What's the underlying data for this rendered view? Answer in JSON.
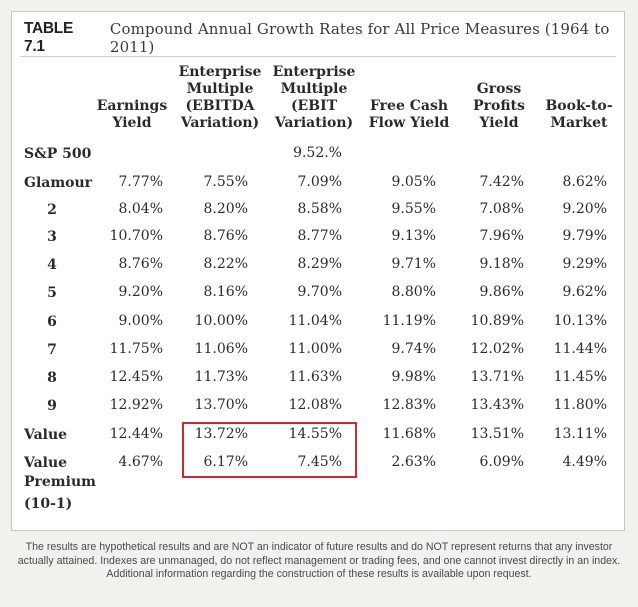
{
  "table": {
    "label": "TABLE 7.1",
    "title": "Compound Annual Growth Rates for All Price Measures (1964 to 2011)",
    "columns": [
      {
        "lines": [
          "Earnings",
          "Yield"
        ]
      },
      {
        "lines": [
          "Enterprise",
          "Multiple",
          "(EBITDA",
          "Variation)"
        ]
      },
      {
        "lines": [
          "Enterprise",
          "Multiple",
          "(EBIT",
          "Variation)"
        ]
      },
      {
        "lines": [
          "Free Cash",
          "Flow Yield"
        ]
      },
      {
        "lines": [
          "Gross",
          "Profits",
          "Yield"
        ]
      },
      {
        "lines": [
          "Book-to-",
          "Market"
        ]
      }
    ],
    "rows": [
      {
        "label": [
          "S&P 500"
        ],
        "values": [
          "",
          "",
          "9.52.%",
          "",
          "",
          ""
        ]
      },
      {
        "label": [
          "Glamour"
        ],
        "values": [
          "7.77%",
          "7.55%",
          "7.09%",
          "9.05%",
          "7.42%",
          "8.62%"
        ]
      },
      {
        "label": [
          "2"
        ],
        "values": [
          "8.04%",
          "8.20%",
          "8.58%",
          "9.55%",
          "7.08%",
          "9.20%"
        ]
      },
      {
        "label": [
          "3"
        ],
        "values": [
          "10.70%",
          "8.76%",
          "8.77%",
          "9.13%",
          "7.96%",
          "9.79%"
        ]
      },
      {
        "label": [
          "4"
        ],
        "values": [
          "8.76%",
          "8.22%",
          "8.29%",
          "9.71%",
          "9.18%",
          "9.29%"
        ]
      },
      {
        "label": [
          "5"
        ],
        "values": [
          "9.20%",
          "8.16%",
          "9.70%",
          "8.80%",
          "9.86%",
          "9.62%"
        ]
      },
      {
        "label": [
          "6"
        ],
        "values": [
          "9.00%",
          "10.00%",
          "11.04%",
          "11.19%",
          "10.89%",
          "10.13%"
        ]
      },
      {
        "label": [
          "7"
        ],
        "values": [
          "11.75%",
          "11.06%",
          "11.00%",
          "9.74%",
          "12.02%",
          "11.44%"
        ]
      },
      {
        "label": [
          "8"
        ],
        "values": [
          "12.45%",
          "11.73%",
          "11.63%",
          "9.98%",
          "13.71%",
          "11.45%"
        ]
      },
      {
        "label": [
          "9"
        ],
        "values": [
          "12.92%",
          "13.70%",
          "12.08%",
          "12.83%",
          "13.43%",
          "11.80%"
        ]
      },
      {
        "label": [
          "Value"
        ],
        "values": [
          "12.44%",
          "13.72%",
          "14.55%",
          "11.68%",
          "13.51%",
          "13.11%"
        ]
      },
      {
        "label": [
          "Value",
          "Premium",
          "(10-1)"
        ],
        "values": [
          "4.67%",
          "6.17%",
          "7.45%",
          "2.63%",
          "6.09%",
          "4.49%"
        ]
      }
    ]
  },
  "footnote": "The results are hypothetical results and are NOT an indicator of future results and do NOT represent returns that any investor actually attained. Indexes are unmanaged, do not reflect management or trading fees, and one cannot invest directly in an index. Additional information regarding the construction of these results is available upon request.",
  "colors": {
    "highlight": "#d1282f"
  }
}
